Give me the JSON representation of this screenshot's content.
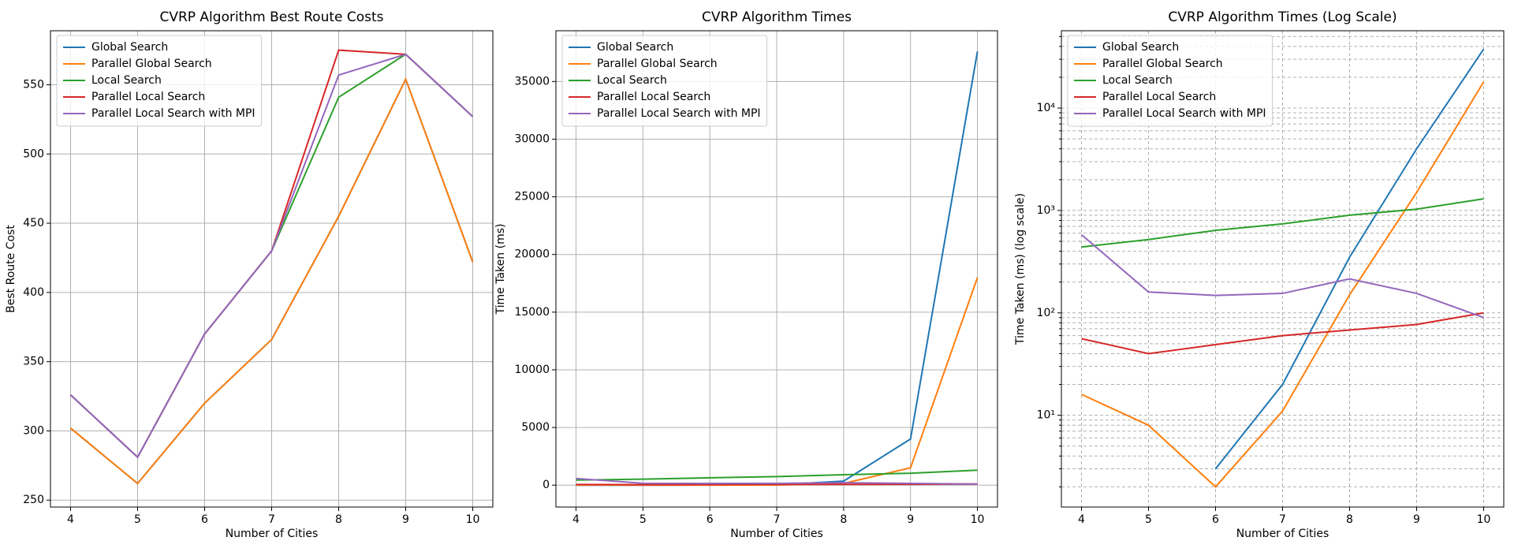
{
  "chart_data": [
    {
      "type": "line",
      "title": "CVRP Algorithm Best Route Costs",
      "xlabel": "Number of Cities",
      "ylabel": "Best Route Cost",
      "x": [
        4,
        5,
        6,
        7,
        8,
        9,
        10
      ],
      "xlim": [
        3.7,
        10.3
      ],
      "xticks": [
        4,
        5,
        6,
        7,
        8,
        9,
        10
      ],
      "ylim": [
        245,
        589
      ],
      "yticks": [
        250,
        300,
        350,
        400,
        450,
        500,
        550
      ],
      "grid": true,
      "legend": "upper left",
      "series": [
        {
          "name": "Global Search",
          "color": "#1f77b4",
          "values": [
            302,
            262,
            320,
            366,
            455,
            554,
            422
          ]
        },
        {
          "name": "Parallel Global Search",
          "color": "#ff7f0e",
          "values": [
            302,
            262,
            320,
            366,
            455,
            554,
            422
          ]
        },
        {
          "name": "Local Search",
          "color": "#2ca02c",
          "values": [
            326,
            281,
            370,
            430,
            541,
            572,
            527
          ]
        },
        {
          "name": "Parallel Local Search",
          "color": "#d62728",
          "values": [
            326,
            281,
            370,
            430,
            575,
            572,
            527
          ]
        },
        {
          "name": "Parallel Local Search with MPI",
          "color": "#9467bd",
          "values": [
            326,
            281,
            370,
            430,
            557,
            572,
            527
          ]
        }
      ]
    },
    {
      "type": "line",
      "title": "CVRP Algorithm Times",
      "xlabel": "Number of Cities",
      "ylabel": "Time Taken (ms)",
      "x": [
        4,
        5,
        6,
        7,
        8,
        9,
        10
      ],
      "xlim": [
        3.7,
        10.3
      ],
      "xticks": [
        4,
        5,
        6,
        7,
        8,
        9,
        10
      ],
      "ylim": [
        -1900,
        39400
      ],
      "yticks": [
        0,
        5000,
        10000,
        15000,
        20000,
        25000,
        30000,
        35000
      ],
      "grid": true,
      "legend": "upper left",
      "series": [
        {
          "name": "Global Search",
          "color": "#1f77b4",
          "values": [
            0,
            0,
            3,
            20,
            350,
            4000,
            37600
          ]
        },
        {
          "name": "Parallel Global Search",
          "color": "#ff7f0e",
          "values": [
            16,
            8,
            2,
            11,
            150,
            1500,
            18000
          ]
        },
        {
          "name": "Local Search",
          "color": "#2ca02c",
          "values": [
            440,
            520,
            640,
            740,
            900,
            1030,
            1300
          ]
        },
        {
          "name": "Parallel Local Search",
          "color": "#d62728",
          "values": [
            56,
            40,
            49,
            60,
            68,
            77,
            100
          ]
        },
        {
          "name": "Parallel Local Search with MPI",
          "color": "#9467bd",
          "values": [
            580,
            160,
            148,
            155,
            215,
            155,
            90
          ]
        }
      ]
    },
    {
      "type": "line",
      "title": "CVRP Algorithm Times (Log Scale)",
      "xlabel": "Number of Cities",
      "ylabel": "Time Taken (ms) (log scale)",
      "x": [
        4,
        5,
        6,
        7,
        8,
        9,
        10
      ],
      "xlim": [
        3.7,
        10.3
      ],
      "xticks": [
        4,
        5,
        6,
        7,
        8,
        9,
        10
      ],
      "log_y": true,
      "ylim": [
        1.27,
        56900
      ],
      "yticks": [
        {
          "value": 10,
          "label": "10¹"
        },
        {
          "value": 100,
          "label": "10²"
        },
        {
          "value": 1000,
          "label": "10³"
        },
        {
          "value": 10000,
          "label": "10⁴"
        }
      ],
      "minor_yticks": [
        2,
        3,
        4,
        5,
        6,
        7,
        8,
        9,
        20,
        30,
        40,
        50,
        60,
        70,
        80,
        90,
        200,
        300,
        400,
        500,
        600,
        700,
        800,
        900,
        2000,
        3000,
        4000,
        5000,
        6000,
        7000,
        8000,
        9000,
        20000,
        30000,
        40000,
        50000
      ],
      "grid": true,
      "grid_style": "dashed",
      "legend": "upper left",
      "series": [
        {
          "name": "Global Search",
          "color": "#1f77b4",
          "values": [
            null,
            null,
            3,
            20,
            350,
            4000,
            37600
          ]
        },
        {
          "name": "Parallel Global Search",
          "color": "#ff7f0e",
          "values": [
            16,
            8,
            2,
            11,
            150,
            1500,
            18000
          ]
        },
        {
          "name": "Local Search",
          "color": "#2ca02c",
          "values": [
            440,
            520,
            640,
            740,
            900,
            1030,
            1300
          ]
        },
        {
          "name": "Parallel Local Search",
          "color": "#d62728",
          "values": [
            56,
            40,
            49,
            60,
            68,
            77,
            100
          ]
        },
        {
          "name": "Parallel Local Search with MPI",
          "color": "#9467bd",
          "values": [
            580,
            160,
            148,
            155,
            215,
            155,
            90
          ]
        }
      ]
    }
  ]
}
